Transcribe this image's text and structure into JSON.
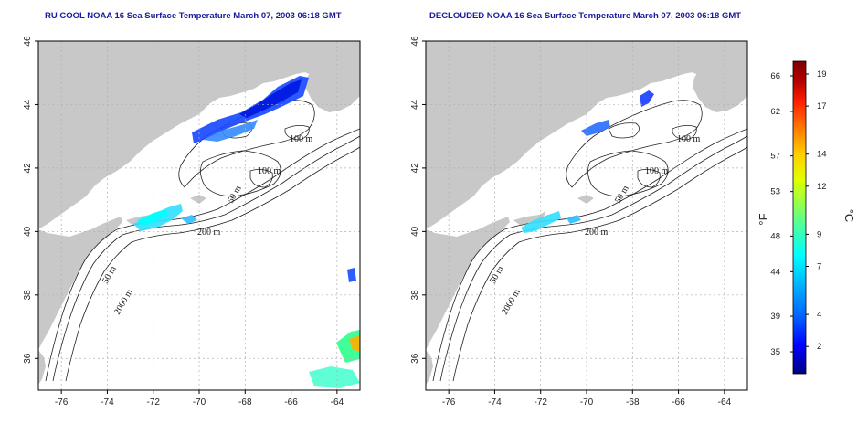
{
  "panels": [
    {
      "id": "left",
      "title": "RU COOL NOAA 16 Sea Surface Temperature March 07, 2003 06:18 GMT"
    },
    {
      "id": "right",
      "title": "DECLOUDED NOAA 16 Sea Surface Temperature March 07, 2003 06:18 GMT"
    }
  ],
  "axes": {
    "x_ticks": [
      "-76",
      "-74",
      "-72",
      "-70",
      "-68",
      "-66",
      "-64"
    ],
    "y_ticks": [
      "46",
      "44",
      "42",
      "40",
      "38",
      "36"
    ]
  },
  "contour_labels": [
    "100 m",
    "100 m",
    "50 m",
    "200 m",
    "50 m",
    "2000 m"
  ],
  "colorbar": {
    "fahrenheit_unit": "°F",
    "celsius_unit": "°C",
    "fahrenheit_ticks": [
      "66",
      "62",
      "57",
      "53",
      "48",
      "44",
      "39",
      "35"
    ],
    "celsius_ticks": [
      "19",
      "17",
      "14",
      "12",
      "9",
      "7",
      "4",
      "2"
    ]
  },
  "colors": {
    "land": "#c8c8c8",
    "sea": "#ffffff",
    "title": "#1a1a9c",
    "colorbar_stops": [
      "#000080",
      "#0000ff",
      "#0060ff",
      "#00b0ff",
      "#00ffff",
      "#40ffb0",
      "#90ff50",
      "#e0ff00",
      "#ffd000",
      "#ff8000",
      "#ff2000",
      "#b00000",
      "#800000"
    ]
  }
}
